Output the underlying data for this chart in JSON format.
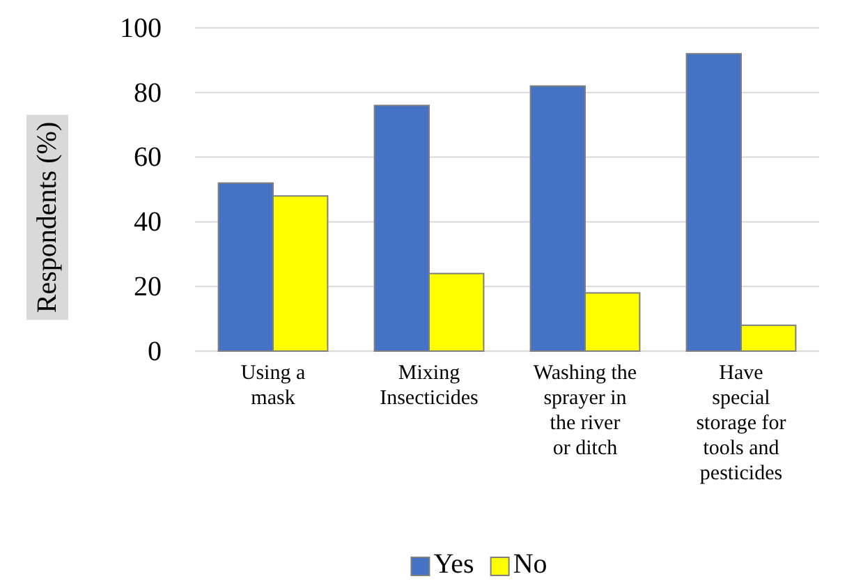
{
  "chart_data": {
    "type": "bar",
    "ylabel": "Respondents (%)",
    "categories": [
      "Using a mask",
      "Mixing Insecticides",
      "Washing the sprayer in the river or ditch",
      "Have special storage for tools and pesticides"
    ],
    "series": [
      {
        "name": "Yes",
        "color": "#4472c4",
        "values": [
          52,
          76,
          82,
          92
        ]
      },
      {
        "name": "No",
        "color": "#ffff00",
        "values": [
          48,
          24,
          18,
          8
        ]
      }
    ],
    "ylim": [
      0,
      100
    ],
    "yticks": [
      0,
      20,
      40,
      60,
      80,
      100
    ],
    "grid": "y",
    "legend": "bottom"
  }
}
